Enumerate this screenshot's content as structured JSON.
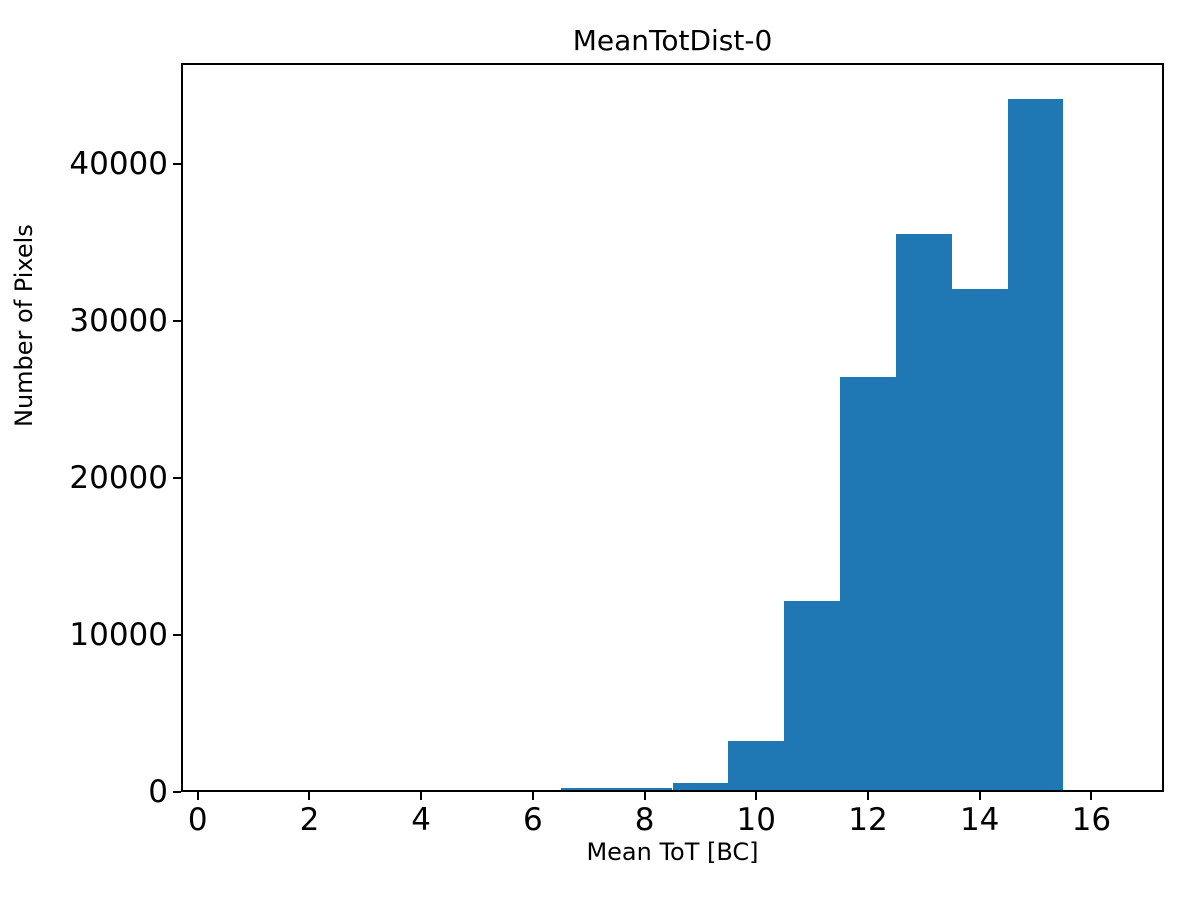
{
  "chart_data": {
    "type": "bar",
    "subtype": "histogram",
    "title": "MeanTotDist-0",
    "xlabel": "Mean ToT [BC]",
    "ylabel": "Number of Pixels",
    "bin_edges": [
      6.5,
      7.5,
      8.5,
      9.5,
      10.5,
      11.5,
      12.5,
      13.5,
      14.5,
      15.5
    ],
    "values": [
      100,
      150,
      430,
      3100,
      12000,
      26300,
      35400,
      31900,
      44000
    ],
    "bar_color": "#1f77b4",
    "xlim": [
      -0.3,
      17.3
    ],
    "ylim": [
      0,
      46400
    ],
    "x_ticks": [
      0,
      2,
      4,
      6,
      8,
      10,
      12,
      14,
      16
    ],
    "y_ticks": [
      0,
      10000,
      20000,
      30000,
      40000
    ],
    "grid": "off",
    "legend": "none",
    "spine_color": "#000000"
  }
}
